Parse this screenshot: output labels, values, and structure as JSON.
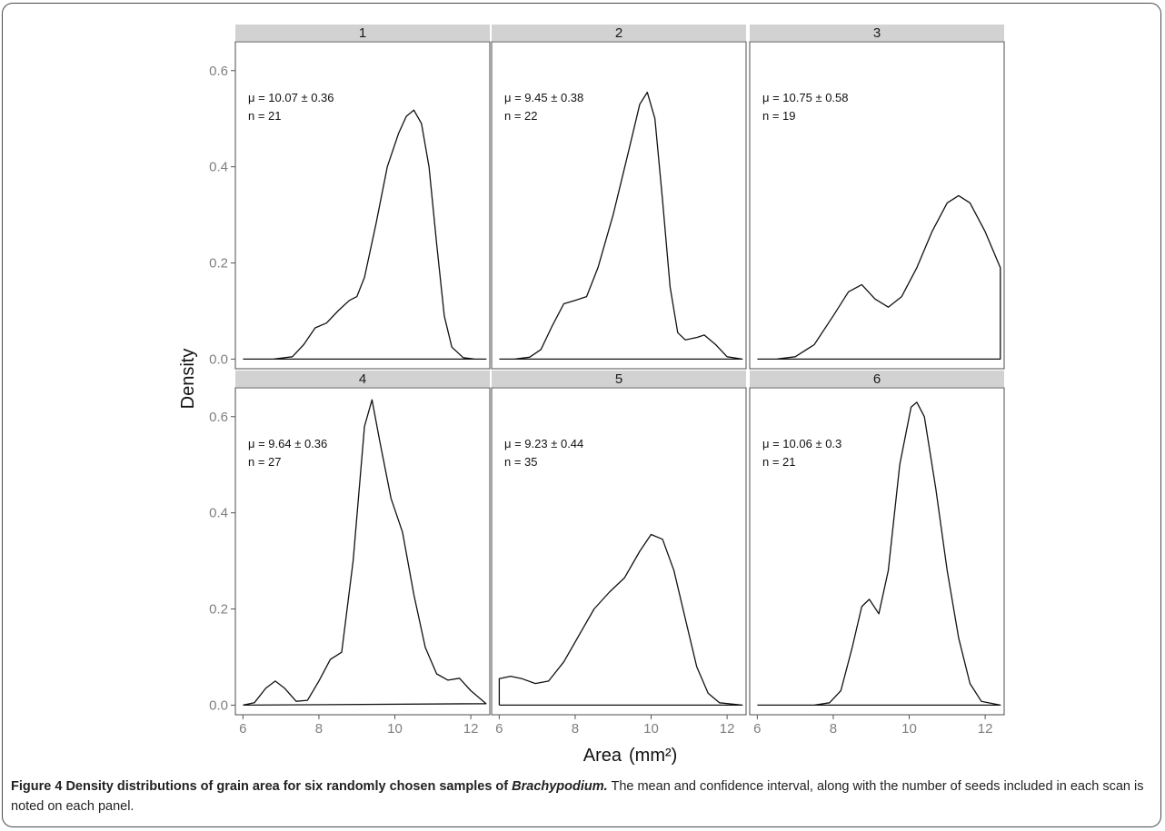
{
  "chart_data": {
    "type": "line",
    "facet_layout": "2 rows x 3 columns",
    "xlabel": "Area",
    "xlabel_unit": "(mm²)",
    "ylabel": "Density",
    "xlim": [
      5.8,
      12.5
    ],
    "ylim": [
      -0.02,
      0.66
    ],
    "xticks": [
      "6",
      "8",
      "10",
      "12"
    ],
    "yticks": [
      "0.0",
      "0.2",
      "0.4",
      "0.6"
    ],
    "grid": false,
    "panels": [
      {
        "label": "1",
        "annotation_mu": "μ = 10.07 ± 0.36",
        "annotation_n": "n = 21",
        "points": [
          [
            6.0,
            0.0
          ],
          [
            6.8,
            0.0
          ],
          [
            7.3,
            0.005
          ],
          [
            7.6,
            0.03
          ],
          [
            7.9,
            0.065
          ],
          [
            8.2,
            0.075
          ],
          [
            8.5,
            0.1
          ],
          [
            8.8,
            0.122
          ],
          [
            9.0,
            0.13
          ],
          [
            9.2,
            0.17
          ],
          [
            9.5,
            0.28
          ],
          [
            9.8,
            0.4
          ],
          [
            10.1,
            0.47
          ],
          [
            10.3,
            0.505
          ],
          [
            10.5,
            0.518
          ],
          [
            10.7,
            0.49
          ],
          [
            10.9,
            0.4
          ],
          [
            11.1,
            0.24
          ],
          [
            11.3,
            0.09
          ],
          [
            11.5,
            0.025
          ],
          [
            11.8,
            0.003
          ],
          [
            12.1,
            0.0
          ],
          [
            12.4,
            0.0
          ]
        ]
      },
      {
        "label": "2",
        "annotation_mu": "μ = 9.45 ± 0.38",
        "annotation_n": "n = 22",
        "points": [
          [
            6.0,
            0.0
          ],
          [
            6.4,
            0.0
          ],
          [
            6.8,
            0.004
          ],
          [
            7.1,
            0.02
          ],
          [
            7.4,
            0.07
          ],
          [
            7.7,
            0.115
          ],
          [
            8.0,
            0.122
          ],
          [
            8.3,
            0.13
          ],
          [
            8.6,
            0.19
          ],
          [
            9.0,
            0.3
          ],
          [
            9.4,
            0.43
          ],
          [
            9.7,
            0.53
          ],
          [
            9.9,
            0.555
          ],
          [
            10.1,
            0.5
          ],
          [
            10.3,
            0.33
          ],
          [
            10.5,
            0.15
          ],
          [
            10.7,
            0.055
          ],
          [
            10.9,
            0.04
          ],
          [
            11.2,
            0.045
          ],
          [
            11.4,
            0.05
          ],
          [
            11.7,
            0.03
          ],
          [
            12.0,
            0.005
          ],
          [
            12.4,
            0.0
          ]
        ]
      },
      {
        "label": "3",
        "annotation_mu": "μ = 10.75 ± 0.58",
        "annotation_n": "n = 19",
        "endpoint_drop": true,
        "points": [
          [
            6.0,
            0.0
          ],
          [
            6.5,
            0.0
          ],
          [
            7.0,
            0.005
          ],
          [
            7.5,
            0.03
          ],
          [
            8.0,
            0.09
          ],
          [
            8.4,
            0.14
          ],
          [
            8.75,
            0.155
          ],
          [
            9.1,
            0.125
          ],
          [
            9.45,
            0.108
          ],
          [
            9.8,
            0.13
          ],
          [
            10.2,
            0.19
          ],
          [
            10.6,
            0.265
          ],
          [
            11.0,
            0.325
          ],
          [
            11.3,
            0.34
          ],
          [
            11.6,
            0.325
          ],
          [
            12.0,
            0.265
          ],
          [
            12.4,
            0.19
          ]
        ]
      },
      {
        "label": "4",
        "annotation_mu": "μ = 9.64 ± 0.36",
        "annotation_n": "n = 27",
        "points": [
          [
            6.0,
            0.0
          ],
          [
            6.3,
            0.005
          ],
          [
            6.6,
            0.035
          ],
          [
            6.85,
            0.05
          ],
          [
            7.1,
            0.035
          ],
          [
            7.4,
            0.008
          ],
          [
            7.7,
            0.01
          ],
          [
            8.0,
            0.05
          ],
          [
            8.3,
            0.095
          ],
          [
            8.6,
            0.11
          ],
          [
            8.9,
            0.3
          ],
          [
            9.2,
            0.58
          ],
          [
            9.4,
            0.635
          ],
          [
            9.6,
            0.55
          ],
          [
            9.9,
            0.43
          ],
          [
            10.2,
            0.36
          ],
          [
            10.5,
            0.23
          ],
          [
            10.8,
            0.12
          ],
          [
            11.1,
            0.065
          ],
          [
            11.4,
            0.052
          ],
          [
            11.7,
            0.056
          ],
          [
            12.0,
            0.03
          ],
          [
            12.4,
            0.003
          ]
        ]
      },
      {
        "label": "5",
        "annotation_mu": "μ = 9.23 ± 0.44",
        "annotation_n": "n = 35",
        "start_drop": true,
        "points": [
          [
            6.0,
            0.055
          ],
          [
            6.3,
            0.06
          ],
          [
            6.6,
            0.055
          ],
          [
            6.95,
            0.045
          ],
          [
            7.3,
            0.05
          ],
          [
            7.7,
            0.09
          ],
          [
            8.1,
            0.145
          ],
          [
            8.5,
            0.2
          ],
          [
            8.9,
            0.235
          ],
          [
            9.3,
            0.265
          ],
          [
            9.7,
            0.32
          ],
          [
            10.0,
            0.355
          ],
          [
            10.3,
            0.345
          ],
          [
            10.6,
            0.28
          ],
          [
            10.9,
            0.18
          ],
          [
            11.2,
            0.08
          ],
          [
            11.5,
            0.025
          ],
          [
            11.8,
            0.005
          ],
          [
            12.4,
            0.0
          ]
        ]
      },
      {
        "label": "6",
        "annotation_mu": "μ = 10.06 ± 0.3",
        "annotation_n": "n = 21",
        "points": [
          [
            6.0,
            0.0
          ],
          [
            7.5,
            0.0
          ],
          [
            7.9,
            0.005
          ],
          [
            8.2,
            0.03
          ],
          [
            8.5,
            0.12
          ],
          [
            8.75,
            0.205
          ],
          [
            8.95,
            0.22
          ],
          [
            9.2,
            0.19
          ],
          [
            9.45,
            0.28
          ],
          [
            9.75,
            0.5
          ],
          [
            10.05,
            0.62
          ],
          [
            10.2,
            0.63
          ],
          [
            10.4,
            0.6
          ],
          [
            10.7,
            0.45
          ],
          [
            11.0,
            0.28
          ],
          [
            11.3,
            0.14
          ],
          [
            11.6,
            0.045
          ],
          [
            11.9,
            0.008
          ],
          [
            12.4,
            0.0
          ]
        ]
      }
    ]
  },
  "caption": {
    "label": "Figure 4",
    "title_part1": "Density distributions of grain area for six randomly chosen samples of",
    "title_italic": "Brachypodium.",
    "body": "The mean and confidence interval, along with the number of seeds included in each scan is noted on each panel."
  }
}
